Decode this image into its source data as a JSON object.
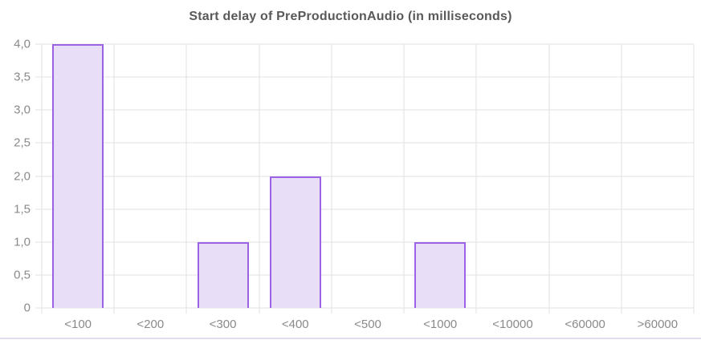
{
  "chart": {
    "title": "Start delay of PreProductionAudio (in milliseconds)"
  },
  "chart_data": {
    "type": "bar",
    "title": "Start delay of PreProductionAudio (in milliseconds)",
    "categories": [
      "<100",
      "<200",
      "<300",
      "<400",
      "<500",
      "<1000",
      "<10000",
      "<60000",
      ">60000"
    ],
    "values": [
      4,
      0,
      1,
      2,
      0,
      1,
      0,
      0,
      0
    ],
    "xlabel": "",
    "ylabel": "",
    "ylim": [
      0,
      4
    ],
    "ytick_step": 0.5,
    "ytick_labels": [
      "0",
      "0,5",
      "1,0",
      "1,5",
      "2,0",
      "2,5",
      "3,0",
      "3,5",
      "4,0"
    ],
    "grid": true,
    "legend": false,
    "colors": {
      "bar_fill": "#e9def8",
      "bar_border": "#9b63e4",
      "gridline": "#e2e2e2",
      "tick_label": "#8a8a8a",
      "title": "#595959",
      "bottom_divider": "#e2deee"
    }
  }
}
